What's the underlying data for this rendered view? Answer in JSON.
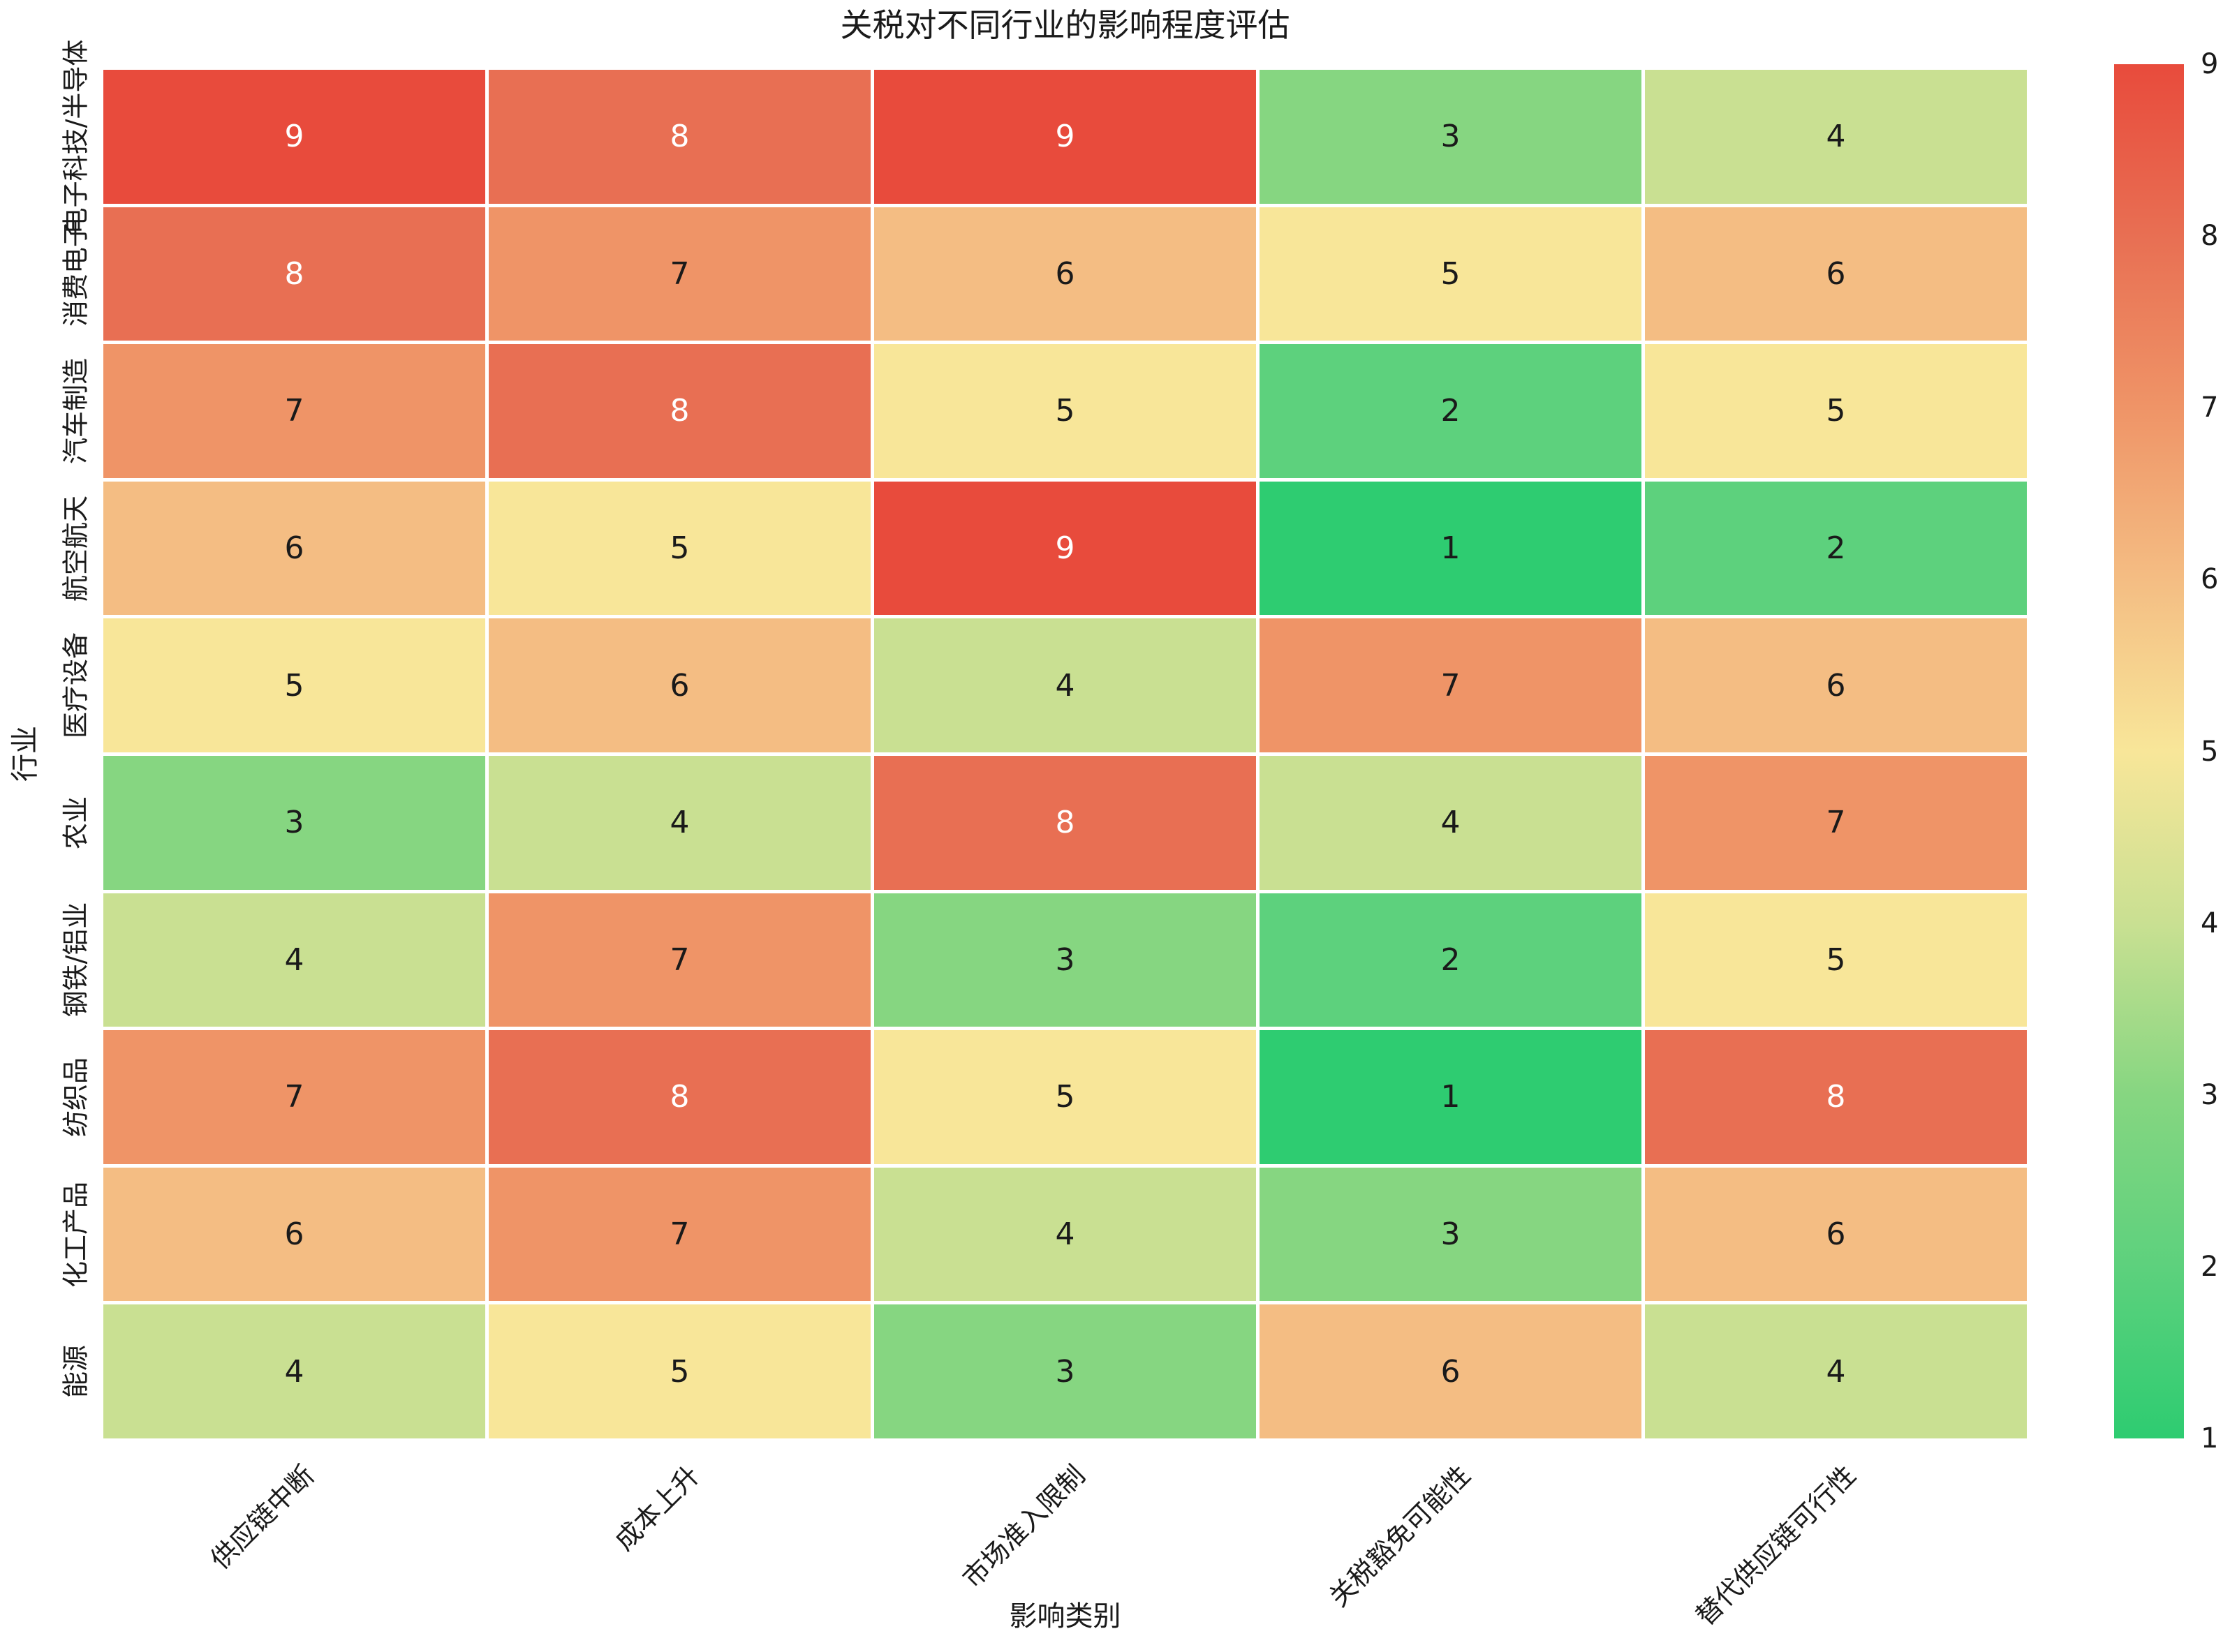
{
  "chart_data": {
    "type": "heatmap",
    "title": "关税对不同行业的影响程度评估",
    "xlabel": "影响类别",
    "ylabel": "行业",
    "x_categories": [
      "供应链中断",
      "成本上升",
      "市场准入限制",
      "关税豁免可能性",
      "替代供应链可行性"
    ],
    "y_categories": [
      "电子科技/半导体",
      "消费电子",
      "汽车制造",
      "航空航天",
      "医疗设备",
      "农业",
      "钢铁/铝业",
      "纺织品",
      "化工产品",
      "能源"
    ],
    "values": [
      [
        9,
        8,
        9,
        3,
        4
      ],
      [
        8,
        7,
        6,
        5,
        6
      ],
      [
        7,
        8,
        5,
        2,
        5
      ],
      [
        6,
        5,
        9,
        1,
        2
      ],
      [
        5,
        6,
        4,
        7,
        6
      ],
      [
        3,
        4,
        8,
        4,
        7
      ],
      [
        4,
        7,
        3,
        2,
        5
      ],
      [
        7,
        8,
        5,
        1,
        8
      ],
      [
        6,
        7,
        4,
        3,
        6
      ],
      [
        4,
        5,
        3,
        6,
        4
      ]
    ],
    "vmin": 1,
    "vmax": 9,
    "colorbar_ticks": [
      1,
      2,
      3,
      4,
      5,
      6,
      7,
      8,
      9
    ],
    "colorbar_position": "right",
    "grid_line_color": "#ffffff",
    "value_colors": {
      "1": "#2ecc71",
      "2": "#5dd17d",
      "3": "#86d681",
      "4": "#c9e092",
      "5": "#f8e699",
      "6": "#f4bd83",
      "7": "#ef9467",
      "8": "#e86f53",
      "9": "#e84b3c"
    },
    "annotation_light_text_values": [
      8,
      9
    ],
    "annotation_colors": {
      "dark": "#1a1a1a",
      "light": "#ffffff"
    }
  }
}
